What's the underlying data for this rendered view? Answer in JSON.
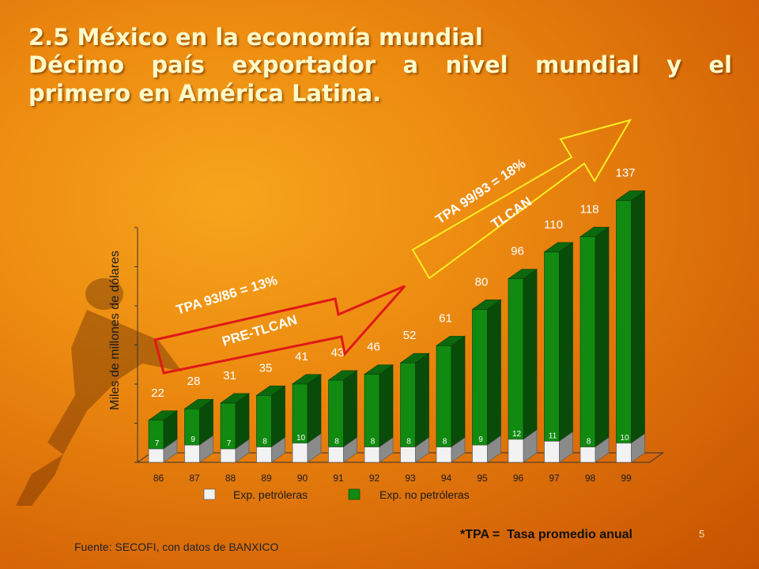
{
  "title": {
    "line1": "2.5 México en la economía mundial",
    "line2": "Décimo país exportador a nivel mundial y el",
    "line3": "primero en América Latina."
  },
  "chart_data": {
    "type": "bar",
    "stacked": true,
    "categories": [
      "86",
      "87",
      "88",
      "89",
      "90",
      "91",
      "92",
      "93",
      "94",
      "95",
      "96",
      "97",
      "98",
      "99"
    ],
    "totals": [
      22,
      28,
      31,
      35,
      41,
      43,
      46,
      52,
      61,
      80,
      96,
      110,
      118,
      137
    ],
    "series": [
      {
        "name": "Exp. petróleras",
        "color": "#f2f2f2",
        "values": [
          7,
          9,
          7,
          8,
          10,
          8,
          8,
          8,
          8,
          9,
          12,
          11,
          8,
          10
        ]
      },
      {
        "name": "Exp. no petróleras",
        "color": "#108a10",
        "values": [
          15,
          19,
          24,
          27,
          31,
          35,
          38,
          44,
          53,
          71,
          84,
          99,
          110,
          127
        ]
      }
    ],
    "ylabel": "Miles de millones de dólares",
    "ylim": [
      0,
      140
    ],
    "legend_position": "bottom",
    "annotations": {
      "pre": {
        "rate": "TPA 93/86 = 13%",
        "label": "PRE-TLCAN",
        "color": "#e01818"
      },
      "post": {
        "rate": "TPA 99/93 = 18%",
        "label": "TLCAN",
        "color": "#ffee22"
      }
    }
  },
  "footer": {
    "source": "Fuente: SECOFI, con datos de BANXICO",
    "tpa_note": "*TPA =  Tasa promedio anual",
    "page_number": "5"
  }
}
